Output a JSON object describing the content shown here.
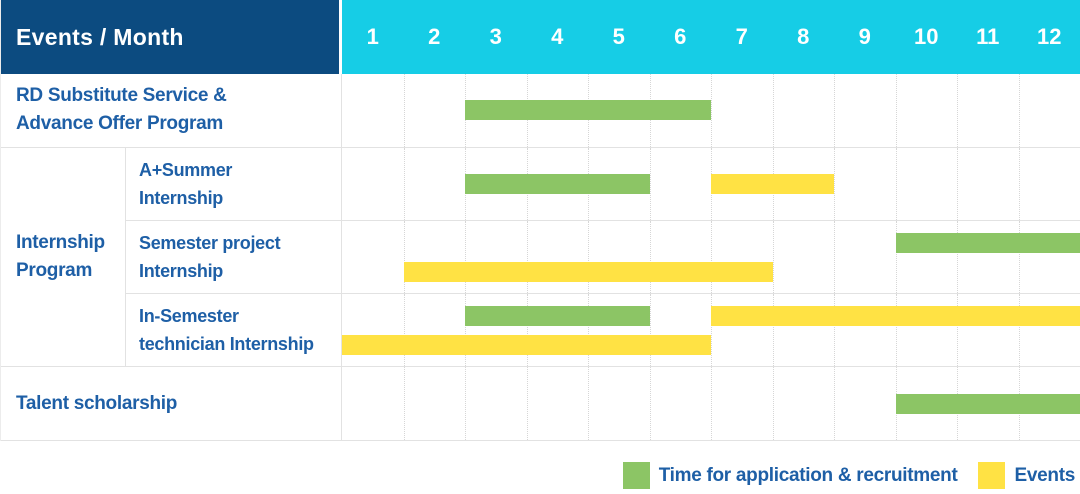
{
  "header": {
    "title": "Events / Month",
    "months": [
      "1",
      "2",
      "3",
      "4",
      "5",
      "6",
      "7",
      "8",
      "9",
      "10",
      "11",
      "12"
    ]
  },
  "colors": {
    "header_navy": "#0C4B80",
    "header_cyan": "#16CDE6",
    "bar_green": "#8CC565",
    "bar_yellow": "#FFE244",
    "label_text": "#1E5FA6",
    "grid_line": "#E2E2E2"
  },
  "legend": {
    "items": [
      {
        "kind": "recruitment",
        "label": "Time for application & recruitment",
        "color": "#8CC565"
      },
      {
        "kind": "event",
        "label": "Events",
        "color": "#FFE244"
      }
    ]
  },
  "chart_data": {
    "type": "table",
    "subtype": "gantt",
    "title": "Events / Month",
    "x_categories": [
      1,
      2,
      3,
      4,
      5,
      6,
      7,
      8,
      9,
      10,
      11,
      12
    ],
    "x_range": [
      1,
      12
    ],
    "grid": "dotted-vertical",
    "legend_position": "bottom-right",
    "sections": [
      {
        "group_lines": null,
        "rows": [
          {
            "label": "RD Substitute Service & Advance Offer Program",
            "label_lines": [
              "RD Substitute Service &",
              "Advance Offer Program"
            ],
            "bars": [
              [
                {
                  "kind": "recruitment",
                  "from": 3,
                  "to": 6
                }
              ]
            ]
          }
        ]
      },
      {
        "group": "Internship Program",
        "group_lines": [
          "Internship",
          "Program"
        ],
        "rows": [
          {
            "label": "A+Summer Internship",
            "label_lines": [
              "A+Summer",
              "Internship"
            ],
            "bars": [
              [
                {
                  "kind": "recruitment",
                  "from": 3,
                  "to": 5
                },
                {
                  "kind": "event",
                  "from": 7,
                  "to": 8
                }
              ]
            ]
          },
          {
            "label": "Semester project Internship",
            "label_lines": [
              "Semester project",
              "Internship"
            ],
            "bars": [
              [
                {
                  "kind": "recruitment",
                  "from": 10,
                  "to": 12
                }
              ],
              [
                {
                  "kind": "event",
                  "from": 2,
                  "to": 7
                }
              ]
            ]
          },
          {
            "label": "In-Semester technician Internship",
            "label_lines": [
              "In-Semester",
              "technician Internship"
            ],
            "bars": [
              [
                {
                  "kind": "recruitment",
                  "from": 3,
                  "to": 5
                },
                {
                  "kind": "event",
                  "from": 7,
                  "to": 12
                }
              ],
              [
                {
                  "kind": "event",
                  "from": 1,
                  "to": 6
                }
              ]
            ]
          }
        ]
      },
      {
        "group_lines": null,
        "rows": [
          {
            "label": "Talent scholarship",
            "label_lines": [
              "Talent scholarship"
            ],
            "bars": [
              [
                {
                  "kind": "recruitment",
                  "from": 10,
                  "to": 12
                }
              ]
            ]
          }
        ]
      }
    ]
  }
}
